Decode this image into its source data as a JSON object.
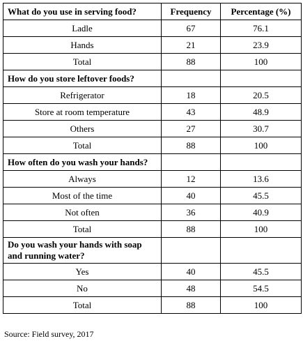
{
  "table": {
    "header": [
      "What do you use in serving food?",
      "Frequency",
      "Percentage (%)"
    ],
    "groups": [
      {
        "rows": [
          [
            "Ladle",
            67,
            76.1
          ],
          [
            "Hands",
            21,
            23.9
          ],
          [
            "Total",
            88,
            100
          ]
        ]
      },
      {
        "question": "How do you store leftover foods?",
        "rows": [
          [
            "Refrigerator",
            18,
            20.5
          ],
          [
            "Store at room temperature",
            43,
            48.9
          ],
          [
            "Others",
            27,
            30.7
          ],
          [
            "Total",
            88,
            100
          ]
        ]
      },
      {
        "question": "How often do you wash your hands?",
        "rows": [
          [
            "Always",
            12,
            13.6
          ],
          [
            "Most of the time",
            40,
            45.5
          ],
          [
            "Not often",
            36,
            40.9
          ],
          [
            "Total",
            88,
            100
          ]
        ]
      },
      {
        "question": "Do you wash your hands with soap and running water?",
        "rows": [
          [
            "Yes",
            40,
            45.5
          ],
          [
            "No",
            48,
            54.5
          ],
          [
            "Total",
            88,
            100
          ]
        ]
      }
    ]
  },
  "source": "Source: Field survey, 2017"
}
